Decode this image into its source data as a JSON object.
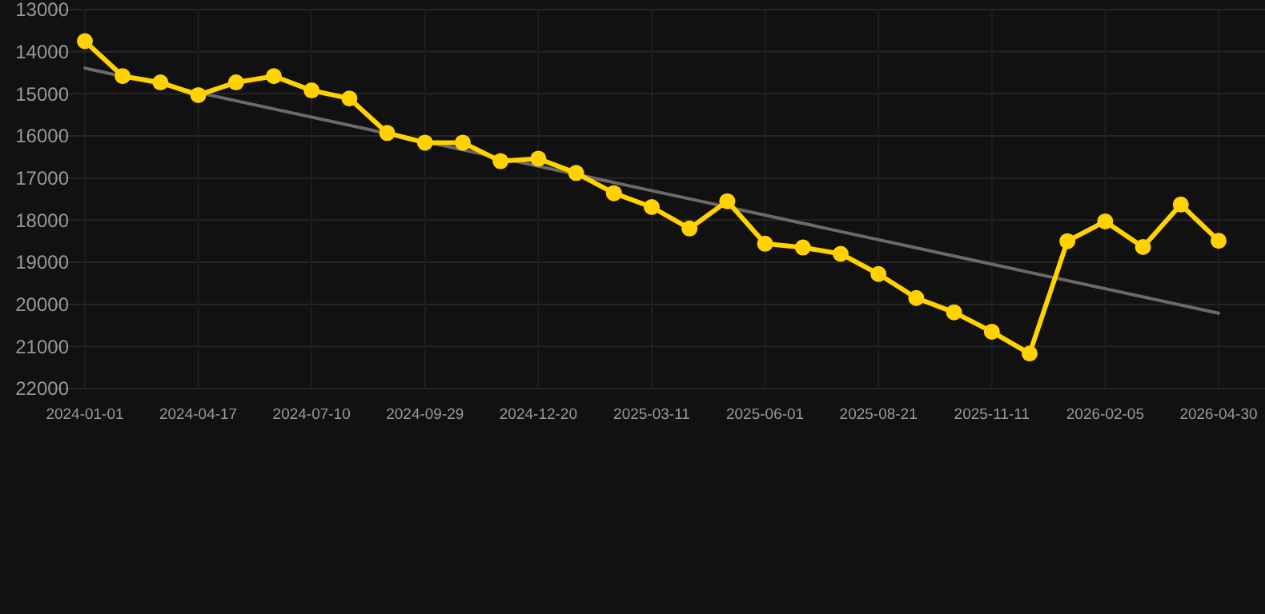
{
  "chart_data": {
    "type": "line",
    "categories": [
      "2024-01-01",
      null,
      null,
      "2024-04-17",
      null,
      null,
      "2024-07-10",
      null,
      null,
      "2024-09-29",
      null,
      null,
      "2024-12-20",
      null,
      null,
      "2025-03-11",
      null,
      null,
      "2025-06-01",
      null,
      null,
      "2025-08-21",
      null,
      null,
      "2025-11-11",
      null,
      null,
      "2026-02-05",
      null,
      null,
      "2026-04-30"
    ],
    "series": [
      {
        "color": "#ffd200",
        "marker": "circle",
        "values": [
          13750,
          14580,
          14730,
          15030,
          14730,
          14580,
          14920,
          15110,
          15930,
          16160,
          16160,
          16600,
          16540,
          16880,
          17360,
          17690,
          18200,
          17550,
          18560,
          18650,
          18800,
          19280,
          19850,
          20190,
          20650,
          21170,
          18500,
          18030,
          18640,
          17630,
          18490
        ]
      },
      {
        "type": "line",
        "color": "#6a6a6a",
        "marker": "none",
        "values": [
          14390,
          null,
          null,
          null,
          null,
          null,
          null,
          null,
          null,
          null,
          null,
          null,
          null,
          null,
          null,
          null,
          null,
          null,
          null,
          null,
          null,
          null,
          null,
          null,
          null,
          null,
          null,
          null,
          null,
          null,
          20210
        ]
      }
    ],
    "ylim": [
      22000,
      13000
    ],
    "yticks": [
      13000,
      14000,
      15000,
      16000,
      17000,
      18000,
      19000,
      20000,
      21000,
      22000
    ],
    "grid": true
  }
}
